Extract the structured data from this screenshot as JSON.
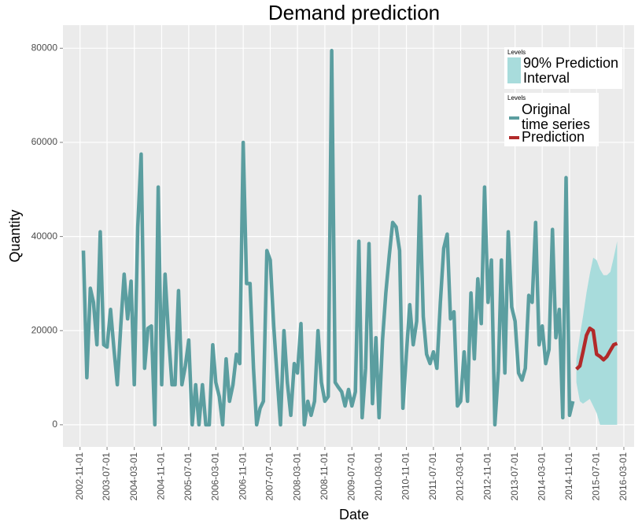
{
  "chart_data": {
    "type": "line",
    "title": "Demand prediction",
    "x_label": "Date",
    "y_label": "Quantity",
    "legend_title": "Levels",
    "xlim": [
      "2002-06-01",
      "2016-06-01"
    ],
    "xticks": [
      "2002-11-01",
      "2003-07-01",
      "2004-03-01",
      "2004-11-01",
      "2005-07-01",
      "2006-03-01",
      "2006-11-01",
      "2007-07-01",
      "2008-03-01",
      "2008-11-01",
      "2009-07-01",
      "2010-03-01",
      "2010-11-01",
      "2011-07-01",
      "2012-03-01",
      "2012-11-01",
      "2013-07-01",
      "2014-03-01",
      "2014-11-01",
      "2015-07-01",
      "2016-03-01"
    ],
    "ylim": [
      -4700,
      84900
    ],
    "yticks": [
      0,
      20000,
      40000,
      60000,
      80000
    ],
    "grid": true,
    "bands": [
      {
        "name": "90% Prediction Interval",
        "color": "#a8dcdc",
        "x": [
          "2015-01-01",
          "2015-02-01",
          "2015-03-01",
          "2015-04-01",
          "2015-05-01",
          "2015-06-01",
          "2015-07-01",
          "2015-08-01",
          "2015-09-01",
          "2015-10-01",
          "2015-11-01",
          "2015-12-01",
          "2016-01-01"
        ],
        "lower": [
          9000,
          5000,
          4500,
          5000,
          5500,
          4000,
          2500,
          0,
          0,
          0,
          0,
          0,
          0
        ],
        "upper": [
          14000,
          19000,
          23000,
          28000,
          32000,
          35500,
          35000,
          33000,
          31800,
          31800,
          32500,
          35500,
          39000
        ]
      }
    ],
    "series": [
      {
        "name": "Original time series",
        "color": "#5b9ea0",
        "x": [
          "2002-12-01",
          "2003-01-01",
          "2003-02-01",
          "2003-03-01",
          "2003-04-01",
          "2003-05-01",
          "2003-06-01",
          "2003-07-01",
          "2003-08-01",
          "2003-09-01",
          "2003-10-01",
          "2003-11-01",
          "2003-12-01",
          "2004-01-01",
          "2004-02-01",
          "2004-03-01",
          "2004-04-01",
          "2004-05-01",
          "2004-06-01",
          "2004-07-01",
          "2004-08-01",
          "2004-09-01",
          "2004-10-01",
          "2004-11-01",
          "2004-12-01",
          "2005-01-01",
          "2005-02-01",
          "2005-03-01",
          "2005-04-01",
          "2005-05-01",
          "2005-06-01",
          "2005-07-01",
          "2005-08-01",
          "2005-09-01",
          "2005-10-01",
          "2005-11-01",
          "2005-12-01",
          "2006-01-01",
          "2006-02-01",
          "2006-03-01",
          "2006-04-01",
          "2006-05-01",
          "2006-06-01",
          "2006-07-01",
          "2006-08-01",
          "2006-09-01",
          "2006-10-01",
          "2006-11-01",
          "2006-12-01",
          "2007-01-01",
          "2007-02-01",
          "2007-03-01",
          "2007-04-01",
          "2007-05-01",
          "2007-06-01",
          "2007-07-01",
          "2007-08-01",
          "2007-09-01",
          "2007-10-01",
          "2007-11-01",
          "2007-12-01",
          "2008-01-01",
          "2008-02-01",
          "2008-03-01",
          "2008-04-01",
          "2008-05-01",
          "2008-06-01",
          "2008-07-01",
          "2008-08-01",
          "2008-09-01",
          "2008-10-01",
          "2008-11-01",
          "2008-12-01",
          "2009-01-01",
          "2009-02-01",
          "2009-03-01",
          "2009-04-01",
          "2009-05-01",
          "2009-06-01",
          "2009-07-01",
          "2009-08-01",
          "2009-09-01",
          "2009-10-01",
          "2009-11-01",
          "2009-12-01",
          "2010-01-01",
          "2010-02-01",
          "2010-03-01",
          "2010-04-01",
          "2010-05-01",
          "2010-06-01",
          "2010-07-01",
          "2010-08-01",
          "2010-09-01",
          "2010-10-01",
          "2010-11-01",
          "2010-12-01",
          "2011-01-01",
          "2011-02-01",
          "2011-03-01",
          "2011-04-01",
          "2011-05-01",
          "2011-06-01",
          "2011-07-01",
          "2011-08-01",
          "2011-09-01",
          "2011-10-01",
          "2011-11-01",
          "2011-12-01",
          "2012-01-01",
          "2012-02-01",
          "2012-03-01",
          "2012-04-01",
          "2012-05-01",
          "2012-06-01",
          "2012-07-01",
          "2012-08-01",
          "2012-09-01",
          "2012-10-01",
          "2012-11-01",
          "2012-12-01",
          "2013-01-01",
          "2013-02-01",
          "2013-03-01",
          "2013-04-01",
          "2013-05-01",
          "2013-06-01",
          "2013-07-01",
          "2013-08-01",
          "2013-09-01",
          "2013-10-01",
          "2013-11-01",
          "2013-12-01",
          "2014-01-01",
          "2014-02-01",
          "2014-03-01",
          "2014-04-01",
          "2014-05-01",
          "2014-06-01",
          "2014-07-01",
          "2014-08-01",
          "2014-09-01",
          "2014-10-01",
          "2014-11-01",
          "2014-12-01"
        ],
        "values": [
          37000,
          10000,
          29000,
          26000,
          17000,
          41000,
          17000,
          16500,
          24500,
          16000,
          8500,
          21000,
          32000,
          22500,
          30500,
          8500,
          42000,
          57500,
          12000,
          20500,
          21000,
          0,
          50500,
          8500,
          32000,
          19000,
          8500,
          8500,
          28500,
          8500,
          12500,
          18000,
          0,
          8500,
          0,
          8500,
          0,
          0,
          17000,
          9000,
          6000,
          0,
          14000,
          5000,
          8500,
          15000,
          13000,
          60000,
          30000,
          30000,
          12000,
          0,
          3500,
          5000,
          37000,
          35000,
          21000,
          10000,
          0,
          20000,
          9000,
          2000,
          13000,
          11000,
          21500,
          0,
          5000,
          2000,
          5000,
          20000,
          9000,
          5000,
          6000,
          79500,
          9000,
          8000,
          7000,
          4000,
          7500,
          4000,
          7000,
          39000,
          1500,
          12000,
          38500,
          4500,
          18500,
          1500,
          18000,
          28000,
          36000,
          43000,
          42000,
          37000,
          3500,
          15000,
          25500,
          17000,
          22000,
          48500,
          23000,
          15000,
          13000,
          15500,
          12000,
          26000,
          37500,
          40500,
          22500,
          24000,
          4000,
          5000,
          15500,
          5000,
          28000,
          14000,
          31000,
          21500,
          50500,
          26000,
          35000,
          0,
          11500,
          35000,
          11000,
          41000,
          25000,
          22000,
          11000,
          9500,
          12000,
          27500,
          26000,
          43000,
          17000,
          21000,
          13000,
          16000,
          41500,
          18500,
          24500,
          1500,
          52500,
          2000,
          5000
        ]
      },
      {
        "name": "Prediction",
        "color": "#b22a2a",
        "x": [
          "2015-01-01",
          "2015-02-01",
          "2015-03-01",
          "2015-04-01",
          "2015-05-01",
          "2015-06-01",
          "2015-07-01",
          "2015-08-01",
          "2015-09-01",
          "2015-10-01",
          "2015-11-01",
          "2015-12-01",
          "2016-01-01"
        ],
        "values": [
          11800,
          12500,
          15500,
          19000,
          20500,
          20000,
          15000,
          14500,
          13800,
          14500,
          15800,
          17000,
          17300
        ]
      }
    ]
  }
}
